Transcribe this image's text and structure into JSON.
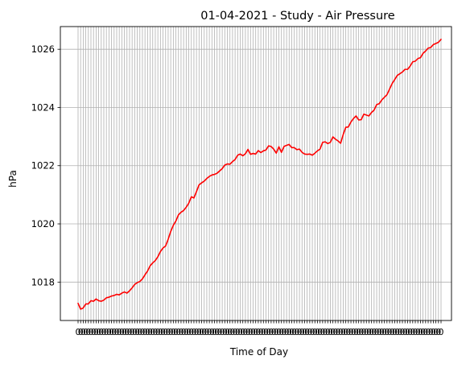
{
  "chart_data": {
    "type": "line",
    "title": "01-04-2021 - Study - Air Pressure",
    "xlabel": "Time of Day",
    "ylabel": "hPa",
    "ylim": [
      1016.68,
      1026.78
    ],
    "yticks": [
      1018,
      1020,
      1022,
      1024,
      1026
    ],
    "xtick_labels_legible": false,
    "grid": true,
    "series": [
      {
        "color": "#ff0000",
        "values": [
          1017.27,
          1017.07,
          1017.11,
          1017.25,
          1017.25,
          1017.36,
          1017.34,
          1017.42,
          1017.36,
          1017.34,
          1017.38,
          1017.46,
          1017.48,
          1017.52,
          1017.54,
          1017.58,
          1017.56,
          1017.62,
          1017.66,
          1017.62,
          1017.7,
          1017.8,
          1017.92,
          1017.98,
          1018.02,
          1018.11,
          1018.25,
          1018.38,
          1018.56,
          1018.66,
          1018.74,
          1018.87,
          1019.05,
          1019.17,
          1019.24,
          1019.47,
          1019.74,
          1019.95,
          1020.1,
          1020.31,
          1020.4,
          1020.46,
          1020.57,
          1020.71,
          1020.93,
          1020.89,
          1021.11,
          1021.34,
          1021.41,
          1021.47,
          1021.56,
          1021.63,
          1021.68,
          1021.7,
          1021.74,
          1021.82,
          1021.9,
          1022.02,
          1022.06,
          1022.05,
          1022.14,
          1022.21,
          1022.36,
          1022.4,
          1022.34,
          1022.41,
          1022.56,
          1022.39,
          1022.42,
          1022.4,
          1022.52,
          1022.45,
          1022.51,
          1022.54,
          1022.68,
          1022.66,
          1022.57,
          1022.43,
          1022.65,
          1022.46,
          1022.66,
          1022.7,
          1022.73,
          1022.62,
          1022.62,
          1022.55,
          1022.57,
          1022.46,
          1022.4,
          1022.39,
          1022.4,
          1022.36,
          1022.43,
          1022.51,
          1022.57,
          1022.8,
          1022.82,
          1022.76,
          1022.8,
          1022.99,
          1022.91,
          1022.85,
          1022.77,
          1023.07,
          1023.32,
          1023.33,
          1023.5,
          1023.62,
          1023.71,
          1023.57,
          1023.58,
          1023.77,
          1023.74,
          1023.71,
          1023.83,
          1023.91,
          1024.1,
          1024.13,
          1024.26,
          1024.35,
          1024.44,
          1024.63,
          1024.82,
          1024.96,
          1025.1,
          1025.16,
          1025.22,
          1025.31,
          1025.31,
          1025.42,
          1025.57,
          1025.59,
          1025.68,
          1025.71,
          1025.86,
          1025.94,
          1026.04,
          1026.06,
          1026.16,
          1026.2,
          1026.24,
          1026.34
        ]
      }
    ]
  }
}
